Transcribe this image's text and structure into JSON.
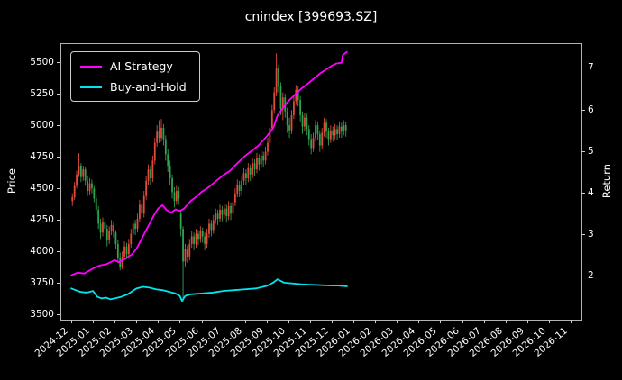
{
  "chart_data": {
    "type": "candlestick_with_lines",
    "title": "cnindex [399693.SZ]",
    "x_axis": {
      "unit": "month index, 0 = 2024-12",
      "range_months": [
        -0.5,
        23.5
      ],
      "labels": [
        "2024-12",
        "2025-01",
        "2025-02",
        "2025-03",
        "2025-04",
        "2025-05",
        "2025-06",
        "2025-07",
        "2025-08",
        "2025-09",
        "2025-10",
        "2025-11",
        "2025-12",
        "2026-01",
        "2026-02",
        "2026-03",
        "2026-04",
        "2026-05",
        "2026-06",
        "2026-07",
        "2026-08",
        "2026-09",
        "2026-10",
        "2026-11"
      ]
    },
    "y_left": {
      "label": "Price",
      "ticks": [
        3500,
        3750,
        4000,
        4250,
        4500,
        4750,
        5000,
        5250,
        5500
      ],
      "range": [
        3460,
        5650
      ]
    },
    "y_right": {
      "label": "Return",
      "ticks": [
        2,
        3,
        4,
        5,
        6,
        7
      ],
      "range": [
        0.95,
        7.59
      ]
    },
    "grid": false,
    "legend_position": "upper-left",
    "colors": {
      "background": "#000000",
      "text": "#ffffff",
      "spine": "#b3b3b3",
      "tick": "#cccccc"
    },
    "candles": {
      "axis": "price",
      "t_start": 0.05,
      "t_step": 0.1,
      "up_color": "#e14b3b",
      "down_color": "#2fa34f",
      "ohlc": [
        [
          4400,
          4460,
          4360,
          4430
        ],
        [
          4430,
          4550,
          4410,
          4520
        ],
        [
          4520,
          4640,
          4500,
          4610
        ],
        [
          4610,
          4780,
          4590,
          4680
        ],
        [
          4680,
          4700,
          4550,
          4590
        ],
        [
          4590,
          4680,
          4560,
          4650
        ],
        [
          4650,
          4670,
          4520,
          4560
        ],
        [
          4560,
          4600,
          4440,
          4480
        ],
        [
          4480,
          4580,
          4450,
          4540
        ],
        [
          4540,
          4570,
          4460,
          4500
        ],
        [
          4500,
          4520,
          4390,
          4420
        ],
        [
          4420,
          4450,
          4290,
          4330
        ],
        [
          4330,
          4360,
          4180,
          4220
        ],
        [
          4220,
          4260,
          4100,
          4150
        ],
        [
          4150,
          4270,
          4120,
          4230
        ],
        [
          4230,
          4260,
          4140,
          4180
        ],
        [
          4180,
          4210,
          4040,
          4090
        ],
        [
          4090,
          4200,
          4060,
          4160
        ],
        [
          4160,
          4250,
          4130,
          4210
        ],
        [
          4210,
          4240,
          4110,
          4150
        ],
        [
          4150,
          4170,
          4020,
          4060
        ],
        [
          4060,
          4090,
          3910,
          3950
        ],
        [
          3950,
          3990,
          3850,
          3880
        ],
        [
          3880,
          4000,
          3860,
          3960
        ],
        [
          3960,
          4080,
          3930,
          4040
        ],
        [
          4040,
          4070,
          3940,
          3980
        ],
        [
          3980,
          4100,
          3950,
          4060
        ],
        [
          4060,
          4180,
          4030,
          4140
        ],
        [
          4140,
          4260,
          4110,
          4220
        ],
        [
          4220,
          4250,
          4130,
          4180
        ],
        [
          4180,
          4300,
          4150,
          4260
        ],
        [
          4260,
          4410,
          4230,
          4370
        ],
        [
          4370,
          4400,
          4250,
          4300
        ],
        [
          4300,
          4480,
          4270,
          4440
        ],
        [
          4440,
          4600,
          4410,
          4560
        ],
        [
          4560,
          4690,
          4530,
          4650
        ],
        [
          4650,
          4680,
          4530,
          4580
        ],
        [
          4580,
          4760,
          4550,
          4720
        ],
        [
          4720,
          4900,
          4690,
          4860
        ],
        [
          4860,
          5000,
          4830,
          4950
        ],
        [
          4950,
          5040,
          4860,
          4900
        ],
        [
          4900,
          5050,
          4870,
          4980
        ],
        [
          4980,
          5010,
          4840,
          4890
        ],
        [
          4890,
          4920,
          4720,
          4770
        ],
        [
          4770,
          4810,
          4630,
          4680
        ],
        [
          4680,
          4720,
          4530,
          4580
        ],
        [
          4580,
          4610,
          4420,
          4470
        ],
        [
          4470,
          4510,
          4350,
          4400
        ],
        [
          4400,
          4520,
          4370,
          4480
        ],
        [
          4480,
          4510,
          4370,
          4420
        ],
        [
          4300,
          4320,
          4120,
          4180
        ],
        [
          4180,
          4200,
          3605,
          3920
        ],
        [
          3920,
          4060,
          3880,
          4020
        ],
        [
          4020,
          4050,
          3910,
          3960
        ],
        [
          3960,
          4100,
          3930,
          4060
        ],
        [
          4060,
          4160,
          4030,
          4120
        ],
        [
          4120,
          4150,
          4010,
          4060
        ],
        [
          4060,
          4180,
          4030,
          4140
        ],
        [
          4140,
          4170,
          4050,
          4100
        ],
        [
          4100,
          4200,
          4070,
          4160
        ],
        [
          4160,
          4190,
          4070,
          4120
        ],
        [
          4120,
          4150,
          4010,
          4060
        ],
        [
          4060,
          4180,
          4030,
          4140
        ],
        [
          4140,
          4260,
          4110,
          4220
        ],
        [
          4220,
          4250,
          4120,
          4170
        ],
        [
          4170,
          4290,
          4140,
          4250
        ],
        [
          4250,
          4340,
          4220,
          4300
        ],
        [
          4300,
          4330,
          4210,
          4260
        ],
        [
          4260,
          4370,
          4230,
          4330
        ],
        [
          4330,
          4360,
          4240,
          4290
        ],
        [
          4290,
          4380,
          4260,
          4340
        ],
        [
          4340,
          4370,
          4230,
          4280
        ],
        [
          4280,
          4400,
          4250,
          4360
        ],
        [
          4360,
          4390,
          4250,
          4300
        ],
        [
          4300,
          4430,
          4270,
          4390
        ],
        [
          4390,
          4500,
          4360,
          4460
        ],
        [
          4460,
          4570,
          4430,
          4530
        ],
        [
          4530,
          4560,
          4430,
          4480
        ],
        [
          4480,
          4600,
          4450,
          4560
        ],
        [
          4560,
          4660,
          4530,
          4620
        ],
        [
          4620,
          4650,
          4530,
          4580
        ],
        [
          4580,
          4700,
          4550,
          4660
        ],
        [
          4660,
          4690,
          4560,
          4610
        ],
        [
          4610,
          4740,
          4580,
          4700
        ],
        [
          4700,
          4730,
          4600,
          4650
        ],
        [
          4650,
          4780,
          4620,
          4740
        ],
        [
          4740,
          4770,
          4640,
          4690
        ],
        [
          4690,
          4800,
          4660,
          4760
        ],
        [
          4760,
          4790,
          4670,
          4720
        ],
        [
          4720,
          4830,
          4690,
          4790
        ],
        [
          4790,
          4900,
          4760,
          4860
        ],
        [
          4860,
          5020,
          4830,
          4980
        ],
        [
          4980,
          5160,
          4950,
          5120
        ],
        [
          5120,
          5300,
          5090,
          5260
        ],
        [
          5260,
          5570,
          5230,
          5450
        ],
        [
          5450,
          5480,
          5260,
          5310
        ],
        [
          5310,
          5340,
          5080,
          5130
        ],
        [
          5130,
          5260,
          5040,
          5220
        ],
        [
          5220,
          5250,
          5060,
          5110
        ],
        [
          5110,
          5140,
          4940,
          5000
        ],
        [
          5000,
          5060,
          4900,
          4960
        ],
        [
          4960,
          5120,
          4930,
          5080
        ],
        [
          5080,
          5230,
          5050,
          5190
        ],
        [
          5190,
          5320,
          5160,
          5280
        ],
        [
          5280,
          5310,
          5150,
          5200
        ],
        [
          5200,
          5230,
          5030,
          5080
        ],
        [
          5080,
          5110,
          4930,
          4990
        ],
        [
          4990,
          5100,
          4950,
          5060
        ],
        [
          5060,
          5090,
          4920,
          4970
        ],
        [
          4970,
          5000,
          4840,
          4890
        ],
        [
          4890,
          4930,
          4770,
          4820
        ],
        [
          4820,
          4940,
          4790,
          4900
        ],
        [
          4900,
          5040,
          4870,
          5000
        ],
        [
          5000,
          5030,
          4880,
          4930
        ],
        [
          4930,
          4960,
          4790,
          4840
        ],
        [
          4840,
          4980,
          4810,
          4940
        ],
        [
          4940,
          5060,
          4910,
          5020
        ],
        [
          5020,
          5050,
          4900,
          4950
        ],
        [
          4950,
          4980,
          4840,
          4890
        ],
        [
          4890,
          5000,
          4860,
          4960
        ],
        [
          4960,
          4990,
          4870,
          4920
        ],
        [
          4920,
          5010,
          4890,
          4970
        ],
        [
          4970,
          5000,
          4880,
          4930
        ],
        [
          4930,
          5030,
          4900,
          4990
        ],
        [
          4990,
          5020,
          4900,
          4950
        ],
        [
          4950,
          5040,
          4920,
          5000
        ],
        [
          5000,
          5030,
          4910,
          4960
        ]
      ]
    },
    "series": [
      {
        "name": "AI Strategy",
        "axis": "return",
        "color": "#ff00ff",
        "points": [
          [
            0,
            2.02
          ],
          [
            0.3,
            2.08
          ],
          [
            0.6,
            2.06
          ],
          [
            1,
            2.18
          ],
          [
            1.3,
            2.25
          ],
          [
            1.6,
            2.28
          ],
          [
            2,
            2.38
          ],
          [
            2.2,
            2.33
          ],
          [
            2.5,
            2.42
          ],
          [
            2.8,
            2.52
          ],
          [
            3,
            2.65
          ],
          [
            3.2,
            2.85
          ],
          [
            3.5,
            3.15
          ],
          [
            3.8,
            3.45
          ],
          [
            4,
            3.62
          ],
          [
            4.2,
            3.7
          ],
          [
            4.4,
            3.58
          ],
          [
            4.6,
            3.52
          ],
          [
            4.8,
            3.6
          ],
          [
            5,
            3.56
          ],
          [
            5.2,
            3.62
          ],
          [
            5.5,
            3.8
          ],
          [
            5.8,
            3.92
          ],
          [
            6,
            4.02
          ],
          [
            6.3,
            4.12
          ],
          [
            6.6,
            4.25
          ],
          [
            7,
            4.42
          ],
          [
            7.3,
            4.52
          ],
          [
            7.6,
            4.68
          ],
          [
            8,
            4.88
          ],
          [
            8.3,
            5.0
          ],
          [
            8.6,
            5.12
          ],
          [
            9,
            5.35
          ],
          [
            9.3,
            5.55
          ],
          [
            9.5,
            5.85
          ],
          [
            9.7,
            6.0
          ],
          [
            10,
            6.2
          ],
          [
            10.3,
            6.35
          ],
          [
            10.6,
            6.5
          ],
          [
            10.9,
            6.62
          ],
          [
            11.2,
            6.75
          ],
          [
            11.5,
            6.88
          ],
          [
            11.8,
            6.98
          ],
          [
            12,
            7.05
          ],
          [
            12.2,
            7.1
          ],
          [
            12.45,
            7.12
          ],
          [
            12.5,
            7.3
          ],
          [
            12.7,
            7.38
          ]
        ]
      },
      {
        "name": "Buy-and-Hold",
        "axis": "return",
        "color": "#00e5ee",
        "points": [
          [
            0,
            1.7
          ],
          [
            0.2,
            1.66
          ],
          [
            0.4,
            1.62
          ],
          [
            0.7,
            1.6
          ],
          [
            1,
            1.64
          ],
          [
            1.2,
            1.5
          ],
          [
            1.4,
            1.46
          ],
          [
            1.6,
            1.48
          ],
          [
            1.8,
            1.44
          ],
          [
            2,
            1.46
          ],
          [
            2.3,
            1.5
          ],
          [
            2.6,
            1.56
          ],
          [
            3,
            1.7
          ],
          [
            3.3,
            1.74
          ],
          [
            3.6,
            1.72
          ],
          [
            3.9,
            1.68
          ],
          [
            4.2,
            1.66
          ],
          [
            4.5,
            1.62
          ],
          [
            4.8,
            1.58
          ],
          [
            5,
            1.52
          ],
          [
            5.1,
            1.4
          ],
          [
            5.25,
            1.52
          ],
          [
            5.5,
            1.56
          ],
          [
            6,
            1.58
          ],
          [
            6.5,
            1.6
          ],
          [
            7,
            1.64
          ],
          [
            7.5,
            1.66
          ],
          [
            8,
            1.68
          ],
          [
            8.5,
            1.7
          ],
          [
            9,
            1.76
          ],
          [
            9.3,
            1.84
          ],
          [
            9.5,
            1.92
          ],
          [
            9.8,
            1.84
          ],
          [
            10.2,
            1.82
          ],
          [
            10.6,
            1.8
          ],
          [
            11,
            1.79
          ],
          [
            11.5,
            1.78
          ],
          [
            12,
            1.77
          ],
          [
            12.3,
            1.77
          ],
          [
            12.7,
            1.75
          ]
        ]
      }
    ]
  }
}
